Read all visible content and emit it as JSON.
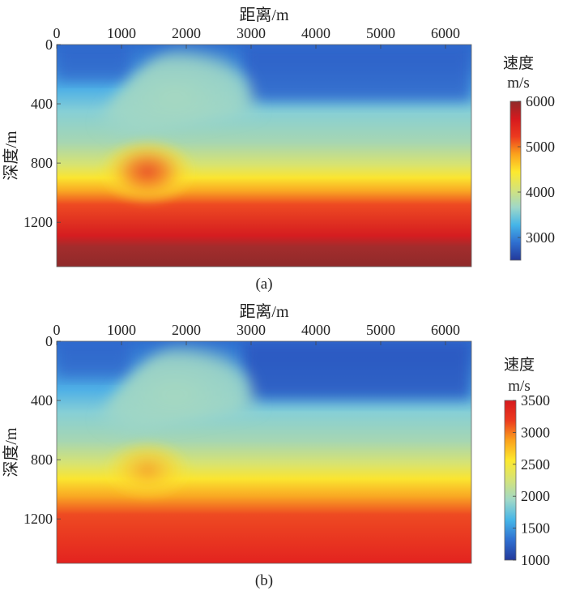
{
  "chart_data": [
    {
      "type": "heatmap",
      "title": "距离/m",
      "ylabel": "深度/m",
      "caption": "(a)",
      "x_ticks": [
        "0",
        "1000",
        "2000",
        "3000",
        "4000",
        "5000",
        "6000"
      ],
      "y_ticks": [
        "0",
        "400",
        "800",
        "1200"
      ],
      "xlim": [
        0,
        6400
      ],
      "ylim": [
        0,
        1500
      ],
      "colorbar": {
        "title_line1": "速度",
        "title_line2": "m/s",
        "ticks": [
          "6000",
          "5000",
          "4000",
          "3000"
        ],
        "tick_values": [
          6000,
          5000,
          4000,
          3000
        ],
        "range": [
          2500,
          6000
        ],
        "colormap": [
          "#23399b",
          "#2f6fd0",
          "#45b5e8",
          "#9fd8c8",
          "#d4e37a",
          "#fde92e",
          "#fba21c",
          "#ec3a1f",
          "#d6191e",
          "#8f2a2a"
        ]
      }
    },
    {
      "type": "heatmap",
      "title": "距离/m",
      "ylabel": "深度/m",
      "caption": "(b)",
      "x_ticks": [
        "0",
        "1000",
        "2000",
        "3000",
        "4000",
        "5000",
        "6000"
      ],
      "y_ticks": [
        "0",
        "400",
        "800",
        "1200"
      ],
      "xlim": [
        0,
        6400
      ],
      "ylim": [
        0,
        1500
      ],
      "colorbar": {
        "title_line1": "速度",
        "title_line2": "m/s",
        "ticks": [
          "3500",
          "3000",
          "2500",
          "2000",
          "1500",
          "1000"
        ],
        "tick_values": [
          3500,
          3000,
          2500,
          2000,
          1500,
          1000
        ],
        "range": [
          1000,
          3500
        ],
        "colormap": [
          "#23399b",
          "#2f6fd0",
          "#45b5e8",
          "#9fd8c8",
          "#d4e37a",
          "#fde92e",
          "#fba21c",
          "#ec3a1f",
          "#d6191e"
        ]
      }
    }
  ]
}
